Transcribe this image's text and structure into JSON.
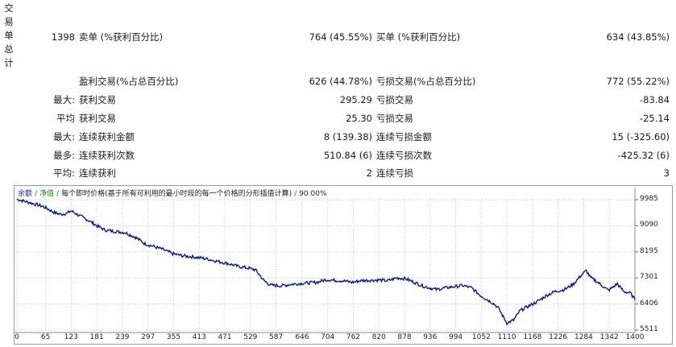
{
  "side_label": [
    "交",
    "易",
    "单",
    "总",
    "计"
  ],
  "stats": {
    "total_trades": "1398",
    "short_label": "卖单 (%获利百分比)",
    "short_value": "764 (45.55%)",
    "long_label": "买单 (%获利百分比)",
    "long_value": "634 (43.85%)",
    "profit_trades_label": "盈利交易(%占总百分比)",
    "profit_trades_value": "626 (44.78%)",
    "loss_trades_label": "亏损交易(%占总百分比)",
    "loss_trades_value": "772 (55.22%)",
    "rows": [
      {
        "prefix": "最大:",
        "left_label": "获利交易",
        "left_value": "295.29",
        "right_label": "亏损交易",
        "right_value": "-83.84"
      },
      {
        "prefix": "平均",
        "left_label": "获利交易",
        "left_value": "25.30",
        "right_label": "亏损交易",
        "right_value": "-25.14"
      },
      {
        "prefix": "最大:",
        "left_label": "连续获利金额",
        "left_value": "8 (139.38)",
        "right_label": "连续亏损金额",
        "right_value": "15 (-325.60)"
      },
      {
        "prefix": "最多:",
        "left_label": "连续获利次数",
        "left_value": "510.84 (6)",
        "right_label": "连续亏损次数",
        "right_value": "-425.32 (6)"
      },
      {
        "prefix": "平均:",
        "left_label": "连续获利",
        "left_value": "2",
        "right_label": "连续亏损",
        "right_value": "3"
      }
    ]
  },
  "chart_data": {
    "type": "line",
    "legend": {
      "balance": "余额",
      "equity": "净值",
      "description": "每个即时价格(基于所有可利用的最小时段的每一个价格的分形插值计算)",
      "quality": "90.00%"
    },
    "x_ticks": [
      0,
      65,
      123,
      181,
      239,
      297,
      355,
      413,
      471,
      529,
      587,
      646,
      704,
      762,
      820,
      878,
      936,
      994,
      1052,
      1110,
      1168,
      1226,
      1284,
      1342,
      1400
    ],
    "y_ticks": [
      9985,
      9090,
      8195,
      7301,
      6406,
      5511
    ],
    "xlim": [
      0,
      1400
    ],
    "ylim": [
      5511,
      9985
    ],
    "line_color": "#0b1a8f",
    "series": [
      {
        "x": [
          0,
          30,
          60,
          85,
          100,
          115,
          123,
          140,
          165,
          180,
          200,
          220,
          245,
          270,
          290,
          310,
          330,
          355,
          380,
          400,
          420,
          440,
          460,
          480,
          500,
          520,
          540,
          550,
          560,
          575,
          600,
          620,
          650,
          680,
          700,
          720,
          740,
          760,
          780,
          800,
          820,
          840,
          860,
          880,
          900,
          920,
          950,
          970,
          990,
          1010,
          1030,
          1050,
          1065,
          1080,
          1090,
          1100,
          1110,
          1125,
          1140,
          1160,
          1180,
          1200,
          1220,
          1240,
          1260,
          1280,
          1290,
          1300,
          1310,
          1320,
          1340,
          1360,
          1375,
          1390,
          1400
        ],
        "y": [
          10000,
          9880,
          9750,
          9540,
          9480,
          9530,
          9600,
          9450,
          9250,
          9100,
          8940,
          8900,
          8860,
          8680,
          8470,
          8380,
          8280,
          8120,
          8050,
          8020,
          7980,
          7920,
          7850,
          7790,
          7700,
          7650,
          7580,
          7400,
          7200,
          7050,
          7030,
          7080,
          7120,
          7150,
          7240,
          7220,
          7200,
          7150,
          7210,
          7220,
          7230,
          7200,
          7300,
          7280,
          7150,
          7020,
          6900,
          6960,
          7000,
          7040,
          6960,
          6700,
          6560,
          6420,
          6280,
          6020,
          5750,
          5850,
          6180,
          6340,
          6500,
          6700,
          6840,
          6900,
          7080,
          7420,
          7550,
          7300,
          7220,
          7100,
          6870,
          7100,
          6830,
          6780,
          6550
        ]
      }
    ]
  }
}
